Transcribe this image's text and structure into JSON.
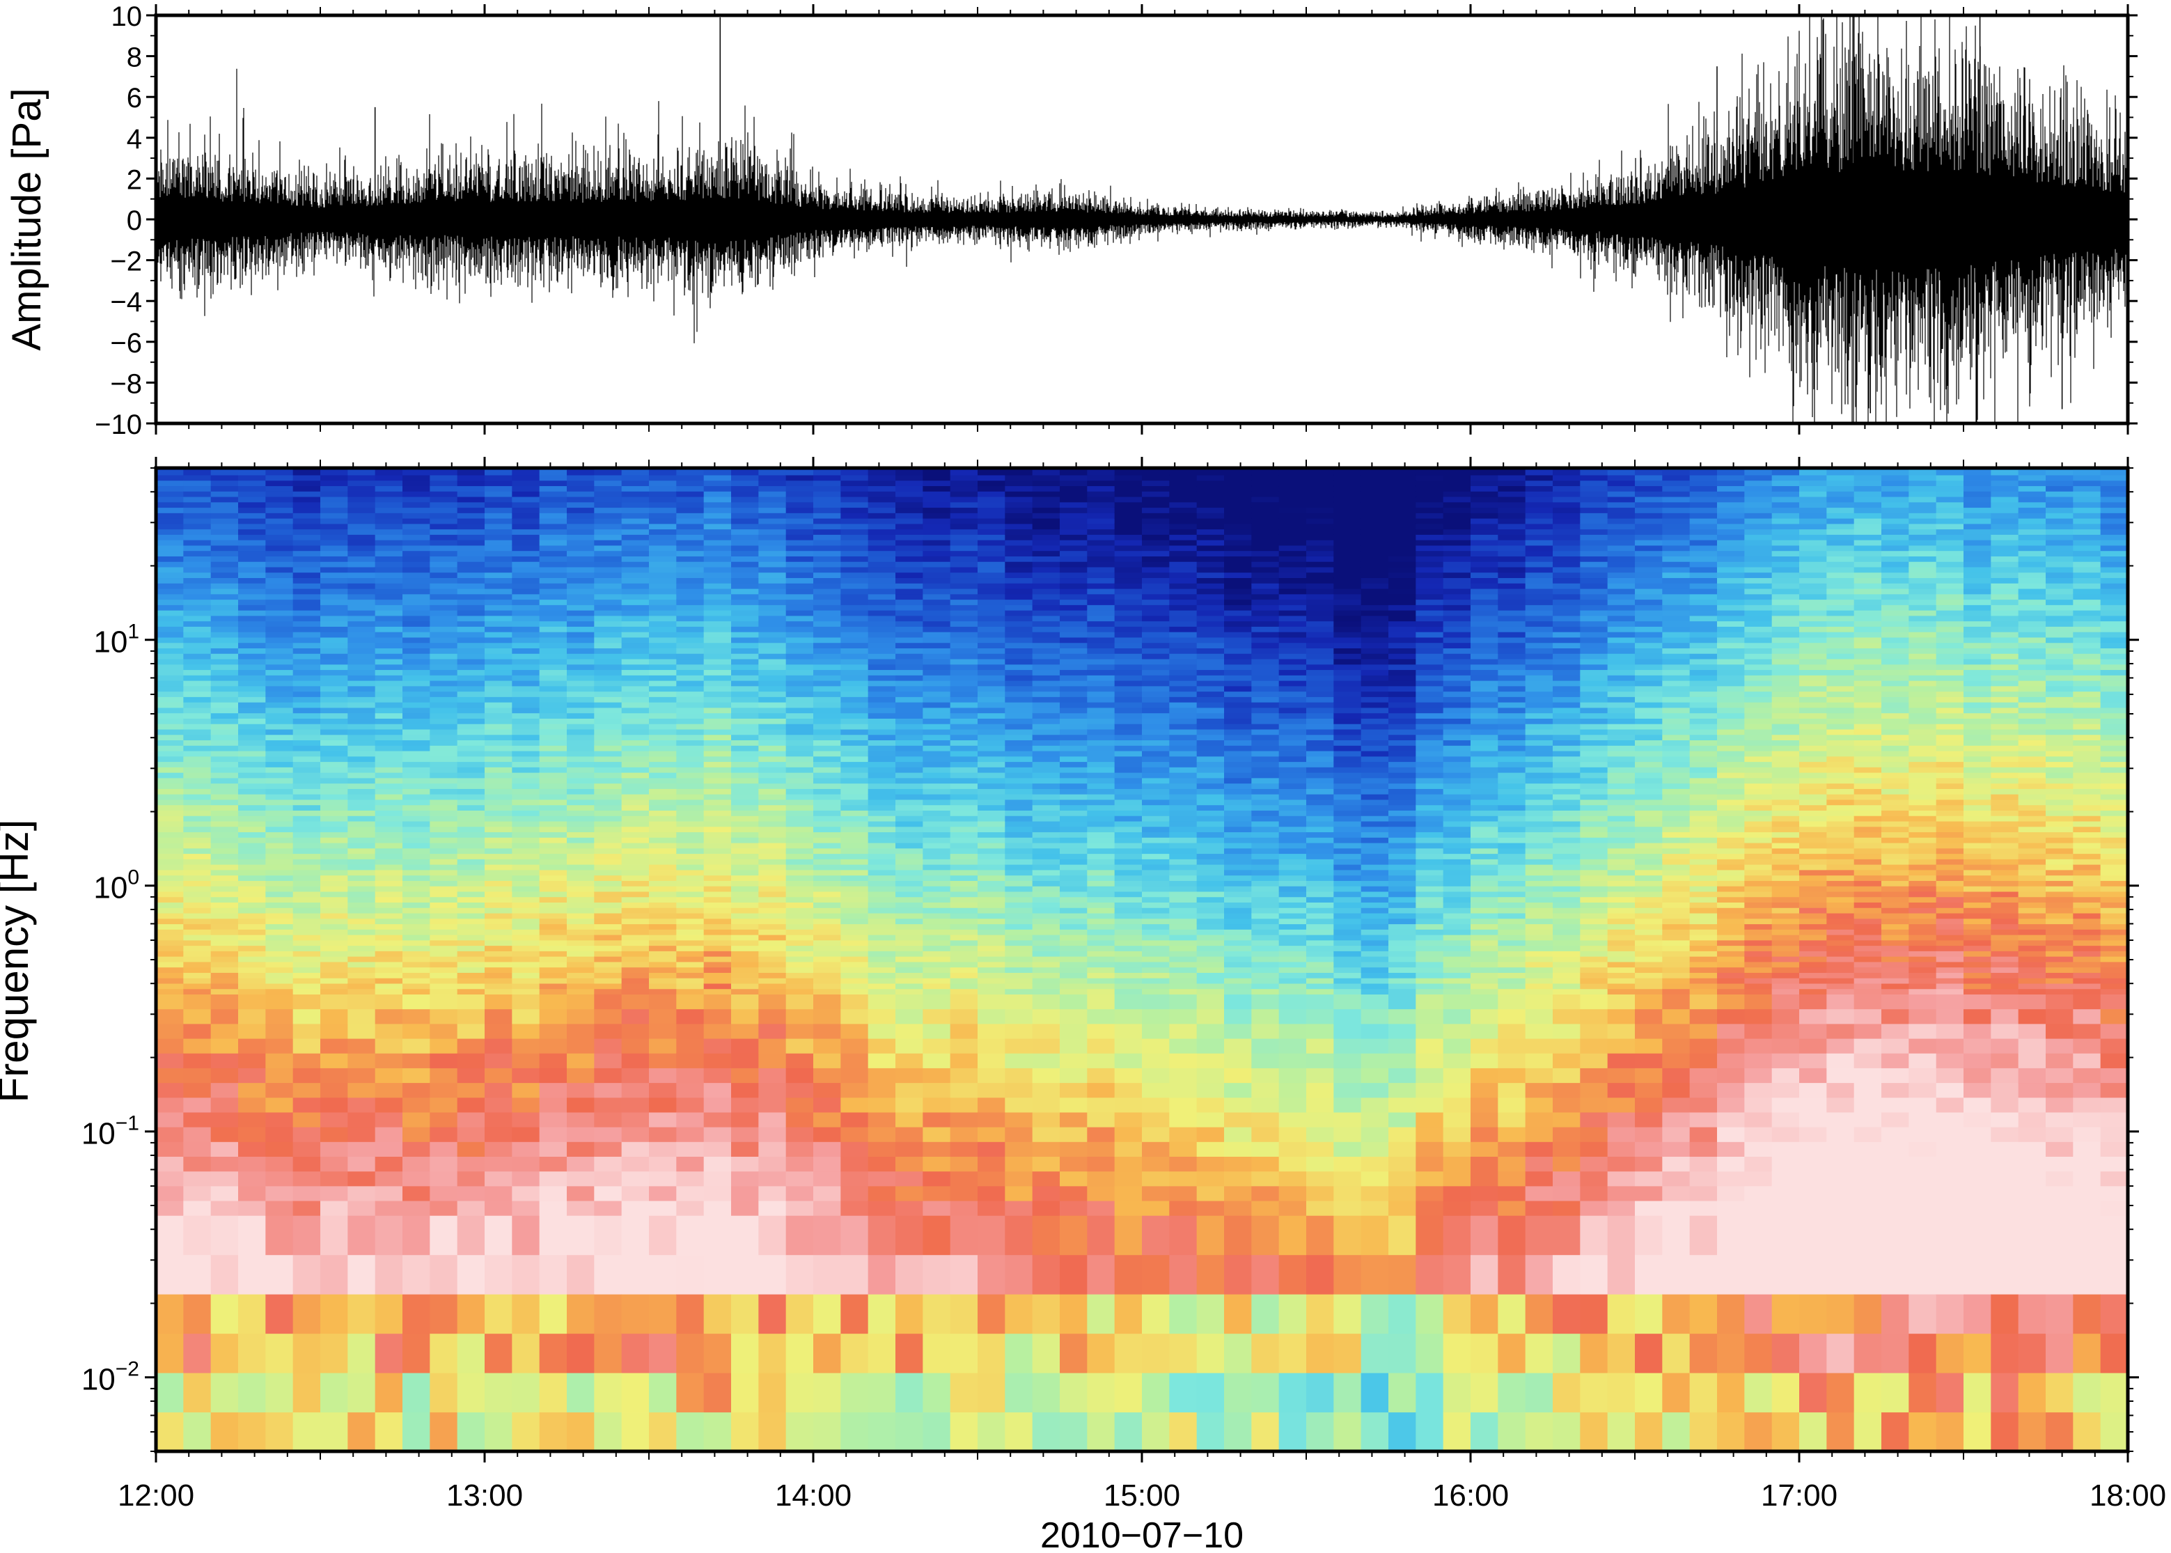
{
  "chart_data": [
    {
      "type": "line",
      "panel": "waveform",
      "ylabel": "Amplitude [Pa]",
      "ylim": [
        -10,
        10
      ],
      "yticks": [
        -10,
        -8,
        -6,
        -4,
        -2,
        0,
        2,
        4,
        6,
        8,
        10
      ],
      "ytick_labels": [
        "−10",
        "−8",
        "−6",
        "−4",
        "−2",
        "0",
        "2",
        "4",
        "6",
        "8",
        "10"
      ],
      "xlim": [
        "2010-07-10 12:00",
        "2010-07-10 18:00"
      ],
      "line_color": "#000000",
      "envelope": {
        "time": [
          "12:00",
          "12:15",
          "12:30",
          "12:45",
          "13:00",
          "13:15",
          "13:30",
          "13:45",
          "14:00",
          "14:15",
          "14:30",
          "14:45",
          "15:00",
          "15:15",
          "15:30",
          "15:45",
          "16:00",
          "16:15",
          "16:30",
          "16:45",
          "17:00",
          "17:15",
          "17:30",
          "17:45",
          "18:00"
        ],
        "amplitude": [
          2.8,
          2.4,
          1.6,
          2.0,
          2.4,
          2.3,
          2.4,
          3.0,
          1.5,
          1.0,
          0.8,
          1.1,
          0.6,
          0.4,
          0.35,
          0.25,
          0.8,
          1.2,
          2.0,
          3.5,
          6.0,
          7.0,
          6.5,
          5.0,
          3.5
        ]
      },
      "spikes": [
        {
          "time": "12:40",
          "value": 5.5
        },
        {
          "time": "13:43",
          "value": 9.9
        },
        {
          "time": "16:45",
          "value": 7.5
        },
        {
          "time": "17:10",
          "value": 10.0
        },
        {
          "time": "17:13",
          "value": -9.5
        },
        {
          "time": "17:33",
          "value": 10.0
        },
        {
          "time": "17:48",
          "value": -9.3
        }
      ]
    },
    {
      "type": "heatmap",
      "panel": "spectrogram",
      "ylabel": "Frequency [Hz]",
      "yscale": "log",
      "ylim": [
        0.005,
        50
      ],
      "yticks": [
        0.01,
        0.1,
        1,
        10
      ],
      "ytick_labels": [
        {
          "base": "10",
          "exp": "−2"
        },
        {
          "base": "10",
          "exp": "−1"
        },
        {
          "base": "10",
          "exp": "0"
        },
        {
          "base": "10",
          "exp": "1"
        }
      ],
      "xlim": [
        "2010-07-10 12:00",
        "2010-07-10 18:00"
      ],
      "colormap": [
        "#7fe8dc",
        "#b8f0a0",
        "#f0f078",
        "#f8b850",
        "#f06a50",
        "#f5a0a0",
        "#fce0e0",
        "#0a107a"
      ],
      "colormap_note": "rainbow: navy (low power) → blue → cyan → green → yellow → orange → red → pink/white (high power)",
      "power_level": {
        "time": [
          "12:00",
          "12:30",
          "13:00",
          "13:30",
          "13:45",
          "14:00",
          "14:30",
          "15:00",
          "15:30",
          "15:45",
          "16:00",
          "16:30",
          "17:00",
          "17:30",
          "18:00"
        ],
        "level_offset": [
          0.2,
          0.0,
          0.2,
          0.3,
          0.4,
          0.0,
          -0.3,
          -0.6,
          -0.9,
          -1.0,
          -0.5,
          0.1,
          0.9,
          0.9,
          0.7
        ]
      }
    }
  ],
  "xaxis": {
    "ticks": [
      "12:00",
      "13:00",
      "14:00",
      "15:00",
      "16:00",
      "17:00",
      "18:00"
    ],
    "label": "2010−07−10"
  }
}
